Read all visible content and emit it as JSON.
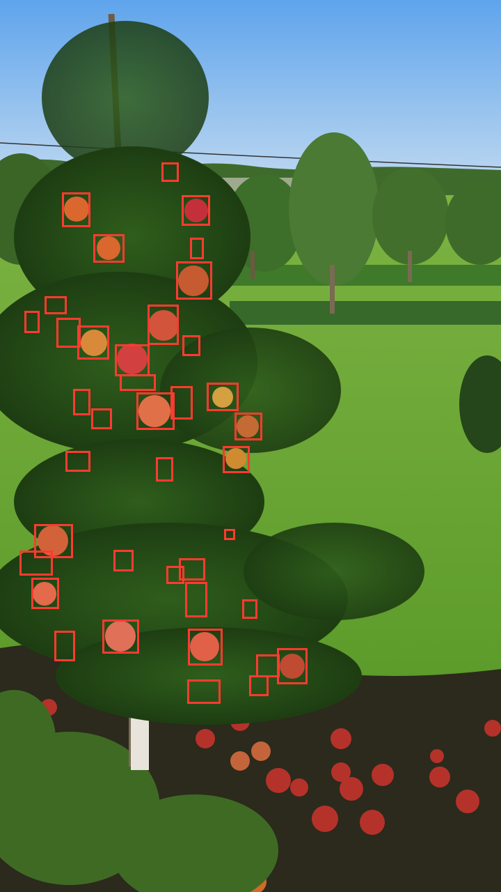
{
  "image": {
    "subject": "apple-orchard",
    "annotation_color": "#ff3b30",
    "annotation_label": "apple",
    "annotation_count": 42
  }
}
